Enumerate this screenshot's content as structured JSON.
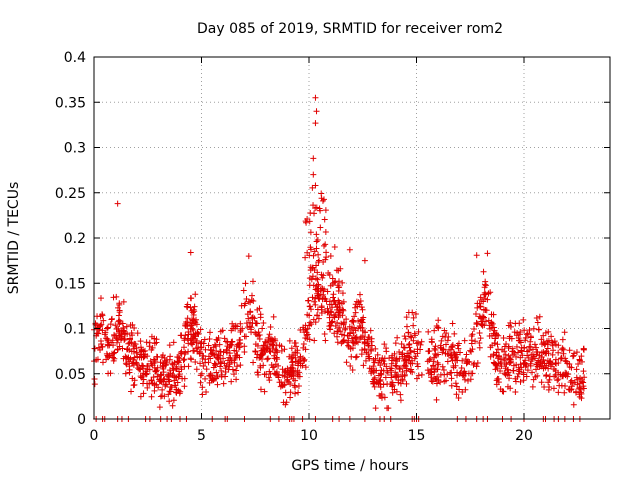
{
  "chart_data": {
    "type": "scatter",
    "title": "Day 085 of 2019, SRMTID for receiver rom2",
    "xlabel": "GPS time / hours",
    "ylabel": "SRMTID / TECUs",
    "xlim": [
      0,
      24
    ],
    "ylim": [
      0,
      0.4
    ],
    "xticks": [
      0,
      5,
      10,
      15,
      20
    ],
    "xtick_labels": [
      "0",
      "5",
      "10",
      "15",
      "20"
    ],
    "yticks": [
      0,
      0.05,
      0.1,
      0.15,
      0.2,
      0.25,
      0.3,
      0.35,
      0.4
    ],
    "ytick_labels": [
      "0",
      "0.05",
      "0.1",
      "0.15",
      "0.2",
      "0.25",
      "0.3",
      "0.35",
      "0.4"
    ],
    "grid": true,
    "marker": "+",
    "marker_color": "#e00000",
    "series": [
      {
        "name": "SRMTID",
        "x_range": [
          0,
          22.8
        ],
        "data_gap_hours": [
          15.25,
          15.5
        ],
        "typical_band": [
          0.02,
          0.12
        ],
        "peaks": [
          {
            "x": 1.1,
            "y": 0.238
          },
          {
            "x": 10.3,
            "y": 0.355
          },
          {
            "x": 10.35,
            "y": 0.34
          },
          {
            "x": 10.3,
            "y": 0.327
          },
          {
            "x": 10.2,
            "y": 0.288
          },
          {
            "x": 10.2,
            "y": 0.27
          },
          {
            "x": 10.3,
            "y": 0.258
          },
          {
            "x": 4.5,
            "y": 0.184
          },
          {
            "x": 7.2,
            "y": 0.18
          },
          {
            "x": 18.3,
            "y": 0.183
          },
          {
            "x": 17.8,
            "y": 0.181
          },
          {
            "x": 11.9,
            "y": 0.187
          },
          {
            "x": 11.2,
            "y": 0.19
          },
          {
            "x": 12.6,
            "y": 0.175
          }
        ],
        "zero_points_x": [
          0.1,
          0.4,
          0.5,
          1.1,
          1.3,
          1.6,
          2.4,
          2.6,
          3.1,
          3.4,
          3.6,
          4.0,
          4.3,
          5.5,
          6.1,
          6.2,
          7.0,
          8.2,
          8.6,
          9.1,
          9.2,
          9.3,
          9.7,
          10.3,
          11.1,
          11.4,
          11.9,
          12.6,
          13.3,
          13.5,
          13.8,
          14.8,
          14.9,
          15.0,
          15.1,
          16.9,
          17.3,
          17.8,
          18.1,
          18.3,
          19.0,
          19.4,
          20.0,
          20.9,
          21.0,
          21.4,
          21.6,
          21.9,
          22.3,
          22.6
        ]
      }
    ]
  }
}
